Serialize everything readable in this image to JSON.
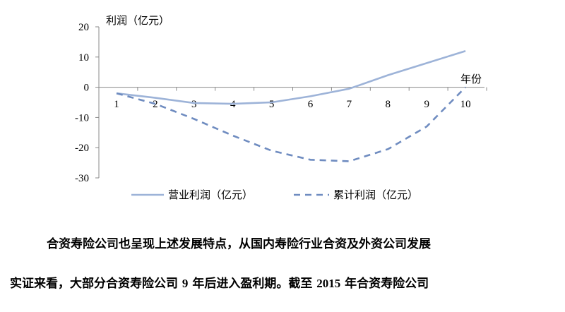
{
  "chart_data": {
    "type": "line",
    "ylabel": "利润（亿元）",
    "xlabel": "年份",
    "x": [
      1,
      2,
      3,
      4,
      5,
      6,
      7,
      8,
      9,
      10
    ],
    "xticks": [
      "1",
      "2",
      "3",
      "4",
      "5",
      "6",
      "7",
      "8",
      "9",
      "10"
    ],
    "yticks": [
      "20",
      "10",
      "0",
      "-10",
      "-20",
      "-30"
    ],
    "ylim": [
      -30,
      20
    ],
    "grid": false,
    "legend_position": "bottom",
    "series": [
      {
        "name": "营业利润（亿元）",
        "style": "solid",
        "color": "#9db3d8",
        "values": [
          -2,
          -3.5,
          -5.2,
          -5.5,
          -5,
          -3,
          -0.5,
          4,
          8,
          12
        ]
      },
      {
        "name": "累计利润（亿元）",
        "style": "dashed",
        "color": "#6f8cc0",
        "values": [
          -2,
          -5.5,
          -10.5,
          -16,
          -21,
          -24,
          -24.5,
          -20.5,
          -13,
          0
        ]
      }
    ]
  },
  "paragraph": {
    "line1": "合资寿险公司也呈现上述发展特点，从国内寿险行业合资及外资公司发展",
    "line2_a": "实证来看，大部分合资寿险公司 ",
    "line2_num1": "9",
    "line2_b": " 年后进入盈利期。截至 ",
    "line2_num2": "2015",
    "line2_c": " 年合资寿险公司"
  }
}
